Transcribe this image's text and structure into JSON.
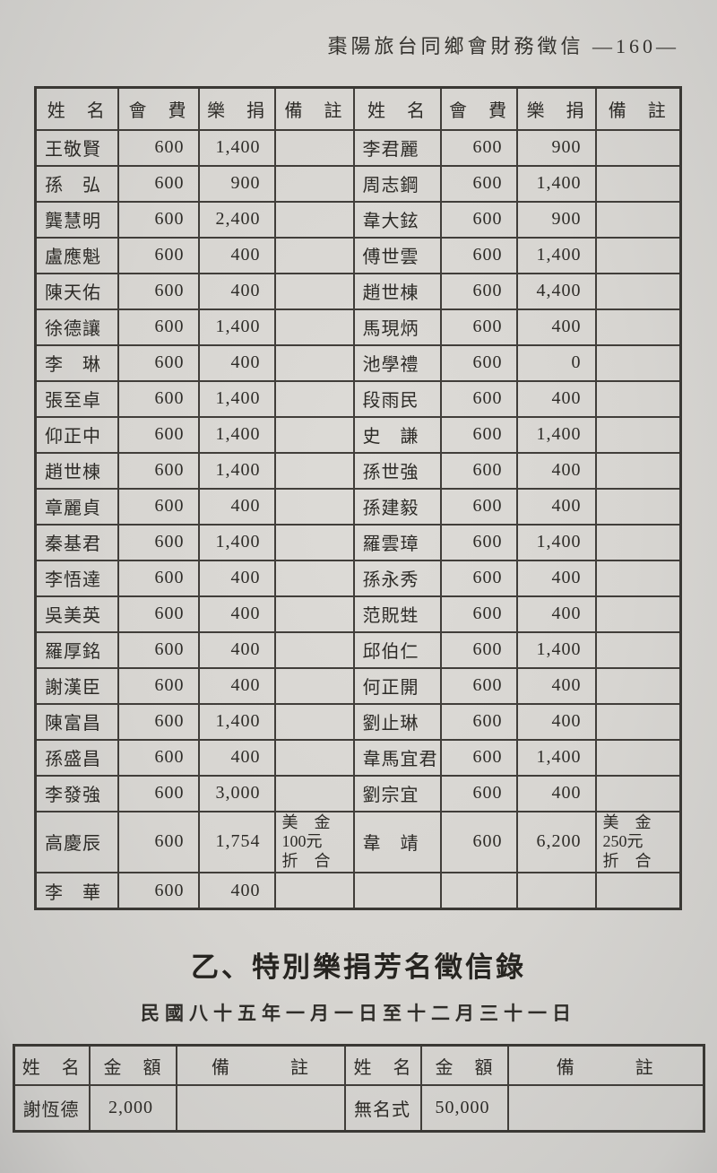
{
  "page": {
    "header": "棗陽旅台同鄉會財務徵信 —160—"
  },
  "main_table": {
    "headers": [
      "姓　名",
      "會　費",
      "樂　捐",
      "備　註",
      "姓　名",
      "會　費",
      "樂　捐",
      "備　註"
    ],
    "rows": [
      [
        "王敬賢",
        "600",
        "1,400",
        "",
        "李君麗",
        "600",
        "900",
        ""
      ],
      [
        "孫　弘",
        "600",
        "900",
        "",
        "周志鋼",
        "600",
        "1,400",
        ""
      ],
      [
        "龔慧明",
        "600",
        "2,400",
        "",
        "韋大鉉",
        "600",
        "900",
        ""
      ],
      [
        "盧應魁",
        "600",
        "400",
        "",
        "傅世雲",
        "600",
        "1,400",
        ""
      ],
      [
        "陳天佑",
        "600",
        "400",
        "",
        "趙世棟",
        "600",
        "4,400",
        ""
      ],
      [
        "徐德讓",
        "600",
        "1,400",
        "",
        "馬現炳",
        "600",
        "400",
        ""
      ],
      [
        "李　琳",
        "600",
        "400",
        "",
        "池學禮",
        "600",
        "0",
        ""
      ],
      [
        "張至卓",
        "600",
        "1,400",
        "",
        "段雨民",
        "600",
        "400",
        ""
      ],
      [
        "仰正中",
        "600",
        "1,400",
        "",
        "史　謙",
        "600",
        "1,400",
        ""
      ],
      [
        "趙世棟",
        "600",
        "1,400",
        "",
        "孫世強",
        "600",
        "400",
        ""
      ],
      [
        "章麗貞",
        "600",
        "400",
        "",
        "孫建毅",
        "600",
        "400",
        ""
      ],
      [
        "秦基君",
        "600",
        "1,400",
        "",
        "羅雲璋",
        "600",
        "1,400",
        ""
      ],
      [
        "李悟達",
        "600",
        "400",
        "",
        "孫永秀",
        "600",
        "400",
        ""
      ],
      [
        "吳美英",
        "600",
        "400",
        "",
        "范貺甡",
        "600",
        "400",
        ""
      ],
      [
        "羅厚銘",
        "600",
        "400",
        "",
        "邱伯仁",
        "600",
        "1,400",
        ""
      ],
      [
        "謝漢臣",
        "600",
        "400",
        "",
        "何正開",
        "600",
        "400",
        ""
      ],
      [
        "陳富昌",
        "600",
        "1,400",
        "",
        "劉止琳",
        "600",
        "400",
        ""
      ],
      [
        "孫盛昌",
        "600",
        "400",
        "",
        "韋馬宜君",
        "600",
        "1,400",
        ""
      ],
      [
        "李發強",
        "600",
        "3,000",
        "",
        "劉宗宜",
        "600",
        "400",
        ""
      ],
      [
        "高慶辰",
        "600",
        "1,754",
        "美　金\n100元\n折　合",
        "韋　靖",
        "600",
        "6,200",
        "美　金\n250元\n折　合"
      ],
      [
        "李　華",
        "600",
        "400",
        "",
        "",
        "",
        "",
        ""
      ]
    ]
  },
  "section": {
    "title": "乙、特別樂捐芳名徵信錄",
    "subtitle": "民國八十五年一月一日至十二月三十一日"
  },
  "special_table": {
    "headers": [
      "姓　名",
      "金　額",
      "備　　　註",
      "姓　名",
      "金　額",
      "備　　　註"
    ],
    "rows": [
      [
        "謝恆德",
        "2,000",
        "",
        "無名式",
        "50,000",
        ""
      ]
    ]
  },
  "colors": {
    "paper": "#d7d5d1",
    "ink": "#2d2b27",
    "border": "#413e3a"
  }
}
